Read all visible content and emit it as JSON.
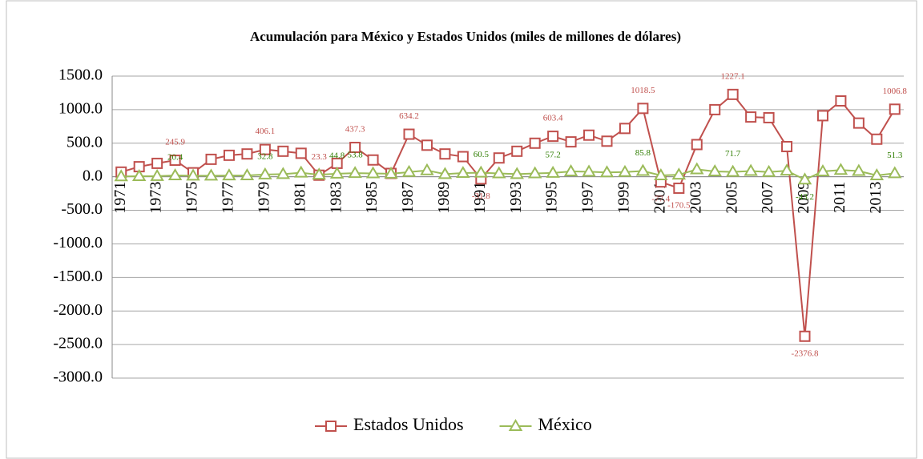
{
  "chart_data": {
    "type": "line",
    "title": "Acumulación para México y Estados Unidos (miles de millones de dólares)",
    "categories": [
      "1971",
      null,
      "1973",
      null,
      "1975",
      null,
      "1977",
      null,
      "1979",
      null,
      "1981",
      null,
      "1983",
      null,
      "1985",
      null,
      "1987",
      null,
      "1989",
      null,
      "1991",
      null,
      "1993",
      null,
      "1995",
      null,
      "1997",
      null,
      "1999",
      null,
      "2001",
      null,
      "2003",
      null,
      "2005",
      null,
      "2007",
      null,
      "2009",
      null,
      "2011",
      null,
      "2013",
      null
    ],
    "series": [
      {
        "name": "Estados Unidos",
        "color": "#c0504d",
        "marker": "square",
        "label_color": "#c0504d",
        "values": [
          70,
          150,
          200,
          245.9,
          60,
          260,
          320,
          340,
          406.1,
          380,
          350,
          23.3,
          200,
          437.3,
          250,
          50,
          634.2,
          470,
          340,
          300,
          -31.8,
          280,
          380,
          500,
          603.4,
          520,
          620,
          530,
          720,
          1018.5,
          -77.4,
          -170.5,
          480,
          1000,
          1227.1,
          890,
          880,
          450,
          -2376.8,
          910,
          1130,
          800,
          560,
          1006.8
        ],
        "value_labels": [
          null,
          null,
          null,
          "245.9",
          null,
          null,
          null,
          null,
          "406.1",
          null,
          null,
          "23.3",
          null,
          "437.3",
          null,
          null,
          "634.2",
          null,
          null,
          null,
          "-31.8",
          null,
          null,
          null,
          "603.4",
          null,
          null,
          null,
          null,
          "1018.5",
          "-77.4",
          "-170.5",
          null,
          null,
          "1227.1",
          null,
          null,
          null,
          "-2376.8",
          null,
          null,
          null,
          null,
          "1006.8"
        ]
      },
      {
        "name": "México",
        "color": "#9bbb59",
        "marker": "triangle",
        "label_color": "#2e7d00",
        "values": [
          5,
          8,
          10,
          20.4,
          15,
          15,
          18,
          20,
          32.8,
          40,
          60,
          30,
          44.8,
          53.8,
          50,
          45,
          70,
          95,
          40,
          55,
          60.5,
          50,
          40,
          50,
          57.2,
          80,
          75,
          65,
          70,
          85.8,
          20,
          30,
          110,
          80,
          71.7,
          85,
          70,
          90,
          -43.2,
          80,
          100,
          85,
          20,
          51.3
        ],
        "value_labels": [
          null,
          null,
          null,
          "20.4",
          null,
          null,
          null,
          null,
          "32.8",
          null,
          null,
          null,
          "44.8",
          "53.8",
          null,
          null,
          null,
          null,
          null,
          null,
          "60.5",
          null,
          null,
          null,
          "57.2",
          null,
          null,
          null,
          null,
          "85.8",
          null,
          null,
          null,
          null,
          "71.7",
          null,
          null,
          null,
          "-43.2",
          null,
          null,
          null,
          null,
          "51.3"
        ]
      }
    ],
    "ylim": [
      -3000,
      1500
    ],
    "yticks": [
      {
        "value": -3000,
        "label": "-3000.0"
      },
      {
        "value": -2500,
        "label": "-2500.0"
      },
      {
        "value": -2000,
        "label": "-2000.0"
      },
      {
        "value": -1500,
        "label": "-1500.0"
      },
      {
        "value": -1000,
        "label": "-1000.0"
      },
      {
        "value": -500,
        "label": "-500.0"
      },
      {
        "value": 0,
        "label": "0.0"
      },
      {
        "value": 500,
        "label": "500.0"
      },
      {
        "value": 1000,
        "label": "1000.0"
      },
      {
        "value": 1500,
        "label": "1500.0"
      }
    ],
    "grid": true,
    "legend": "bottom"
  }
}
